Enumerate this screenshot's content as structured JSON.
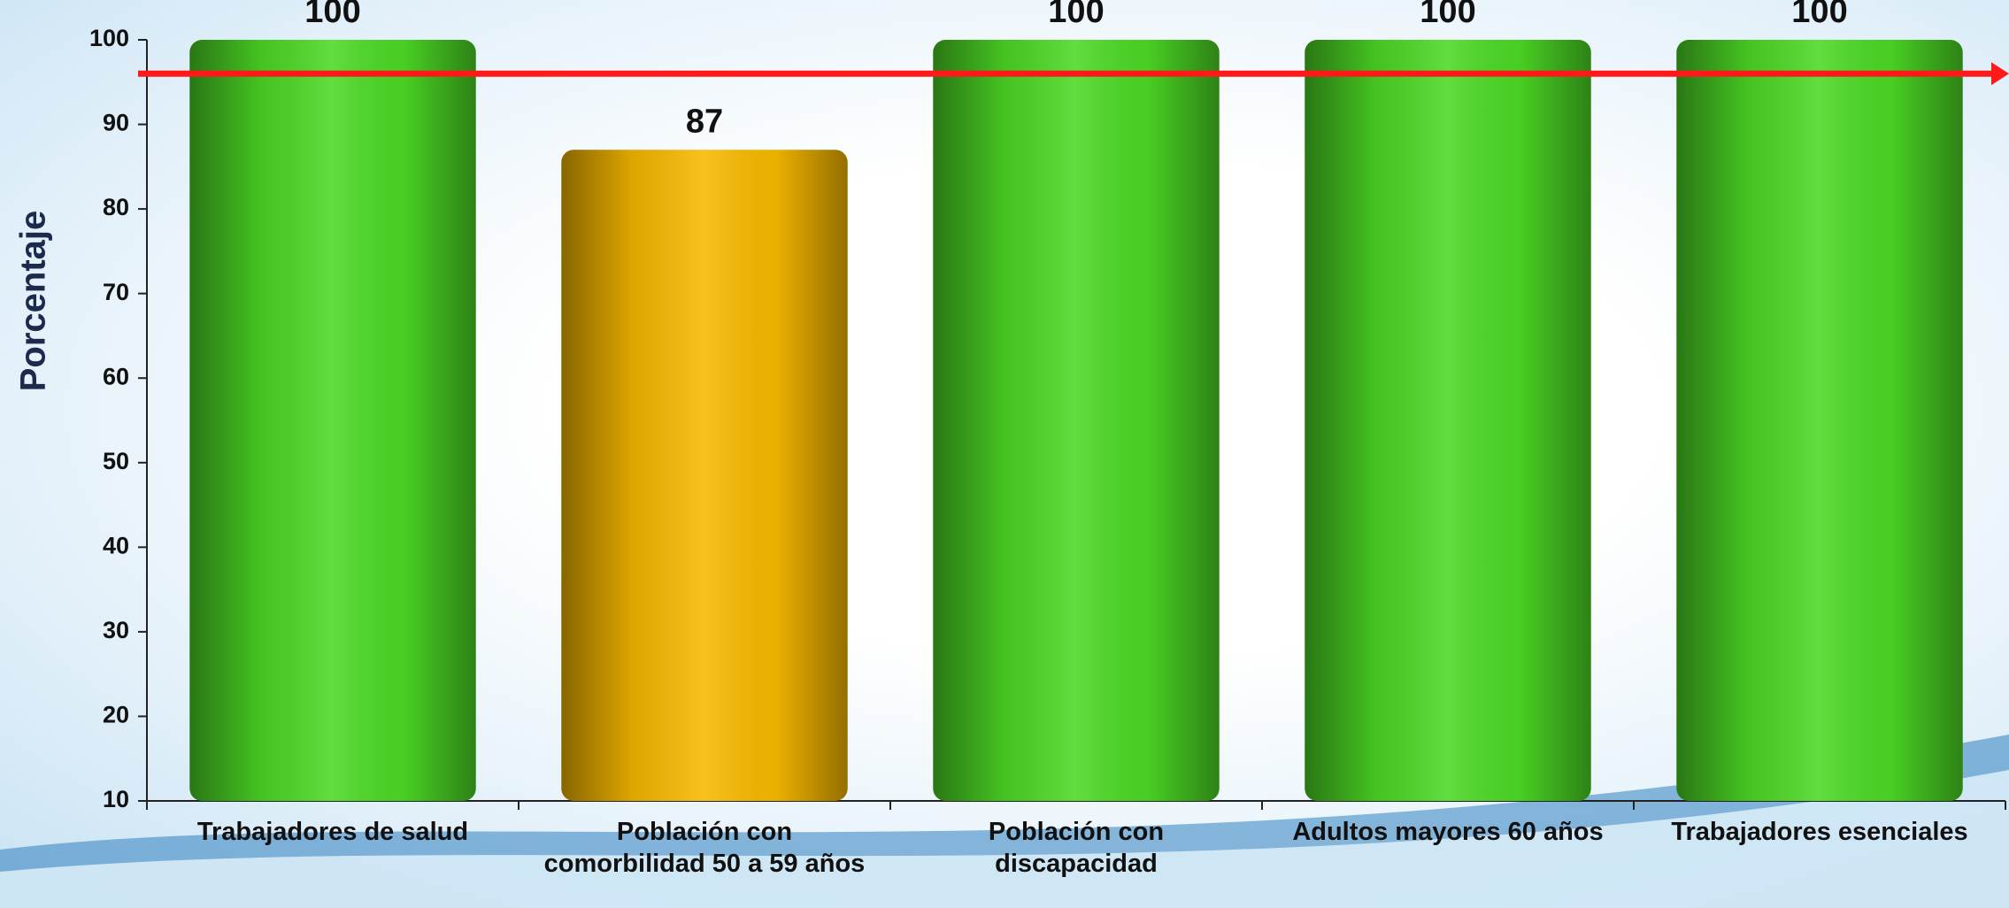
{
  "chart_data": {
    "type": "bar",
    "y_label": "Porcentaje",
    "categories": [
      "Trabajadores de salud",
      "Población con comorbilidad 50 a 59 años",
      "Población con discapacidad",
      "Adultos mayores 60 años",
      "Trabajadores esenciales"
    ],
    "values": [
      100,
      87,
      100,
      100,
      100
    ],
    "colors": [
      "#4cd925",
      "#f7b900",
      "#4cd925",
      "#4cd925",
      "#4cd925"
    ],
    "ylim": [
      10,
      100
    ],
    "yticks": [
      10,
      20,
      30,
      40,
      50,
      60,
      70,
      80,
      90,
      100
    ],
    "reference_line": {
      "value": 96,
      "color": "#ff1a1a"
    }
  }
}
